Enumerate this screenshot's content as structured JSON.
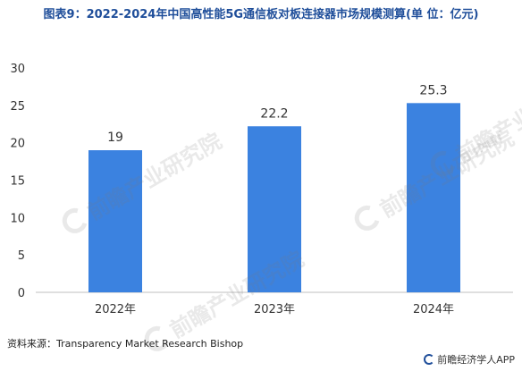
{
  "title": "图表9：2022-2024年中国高性能5G通信板对板连接器市场规模测算(单 位：亿元)",
  "source": "资料来源：Transparency Market Research Bishop",
  "brand": "前瞻经济学人APP",
  "watermark": "前瞻产业研究院",
  "colors": {
    "bar": "#3b82e0",
    "axis": "#bfbfbf",
    "text": "#333333",
    "title": "#1f4e9a"
  },
  "chart_data": {
    "type": "bar",
    "title": "图表9：2022-2024年中国高性能5G通信板对板连接器市场规模测算(单 位：亿元)",
    "xlabel": "",
    "ylabel": "",
    "categories": [
      "2022年",
      "2023年",
      "2024年"
    ],
    "values": [
      19,
      22.2,
      25.3
    ],
    "value_labels": [
      "19",
      "22.2",
      "25.3"
    ],
    "ylim": [
      0,
      30
    ],
    "yticks": [
      0,
      5,
      10,
      15,
      20,
      25,
      30
    ],
    "grid": false,
    "legend": "none"
  }
}
